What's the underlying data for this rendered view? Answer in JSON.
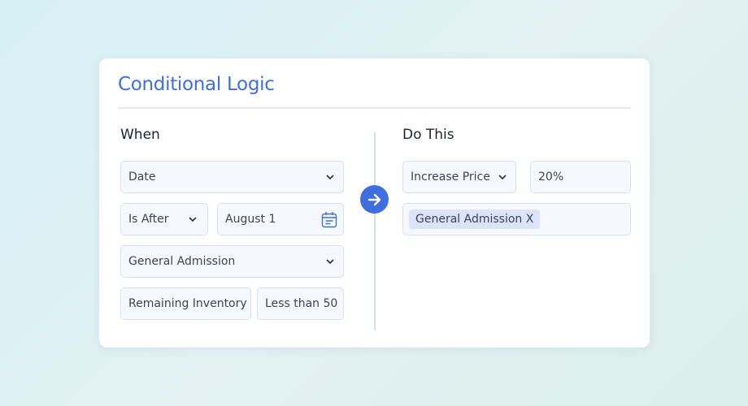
{
  "title": "Conditional Logic",
  "when": {
    "heading": "When",
    "date_field": "Date",
    "operator": "Is After",
    "date_value": "August 1",
    "ticket_type": "General Admission",
    "metric": "Remaining Inventory",
    "threshold": "Less than 50"
  },
  "do_this": {
    "heading": "Do This",
    "action": "Increase Price",
    "amount": "20%",
    "tag": "General Admission X"
  },
  "colors": {
    "accent": "#3f6ee0"
  },
  "icons": {
    "dropdown": "chevron-down-icon",
    "calendar": "calendar-icon",
    "arrow": "arrow-right-icon"
  }
}
